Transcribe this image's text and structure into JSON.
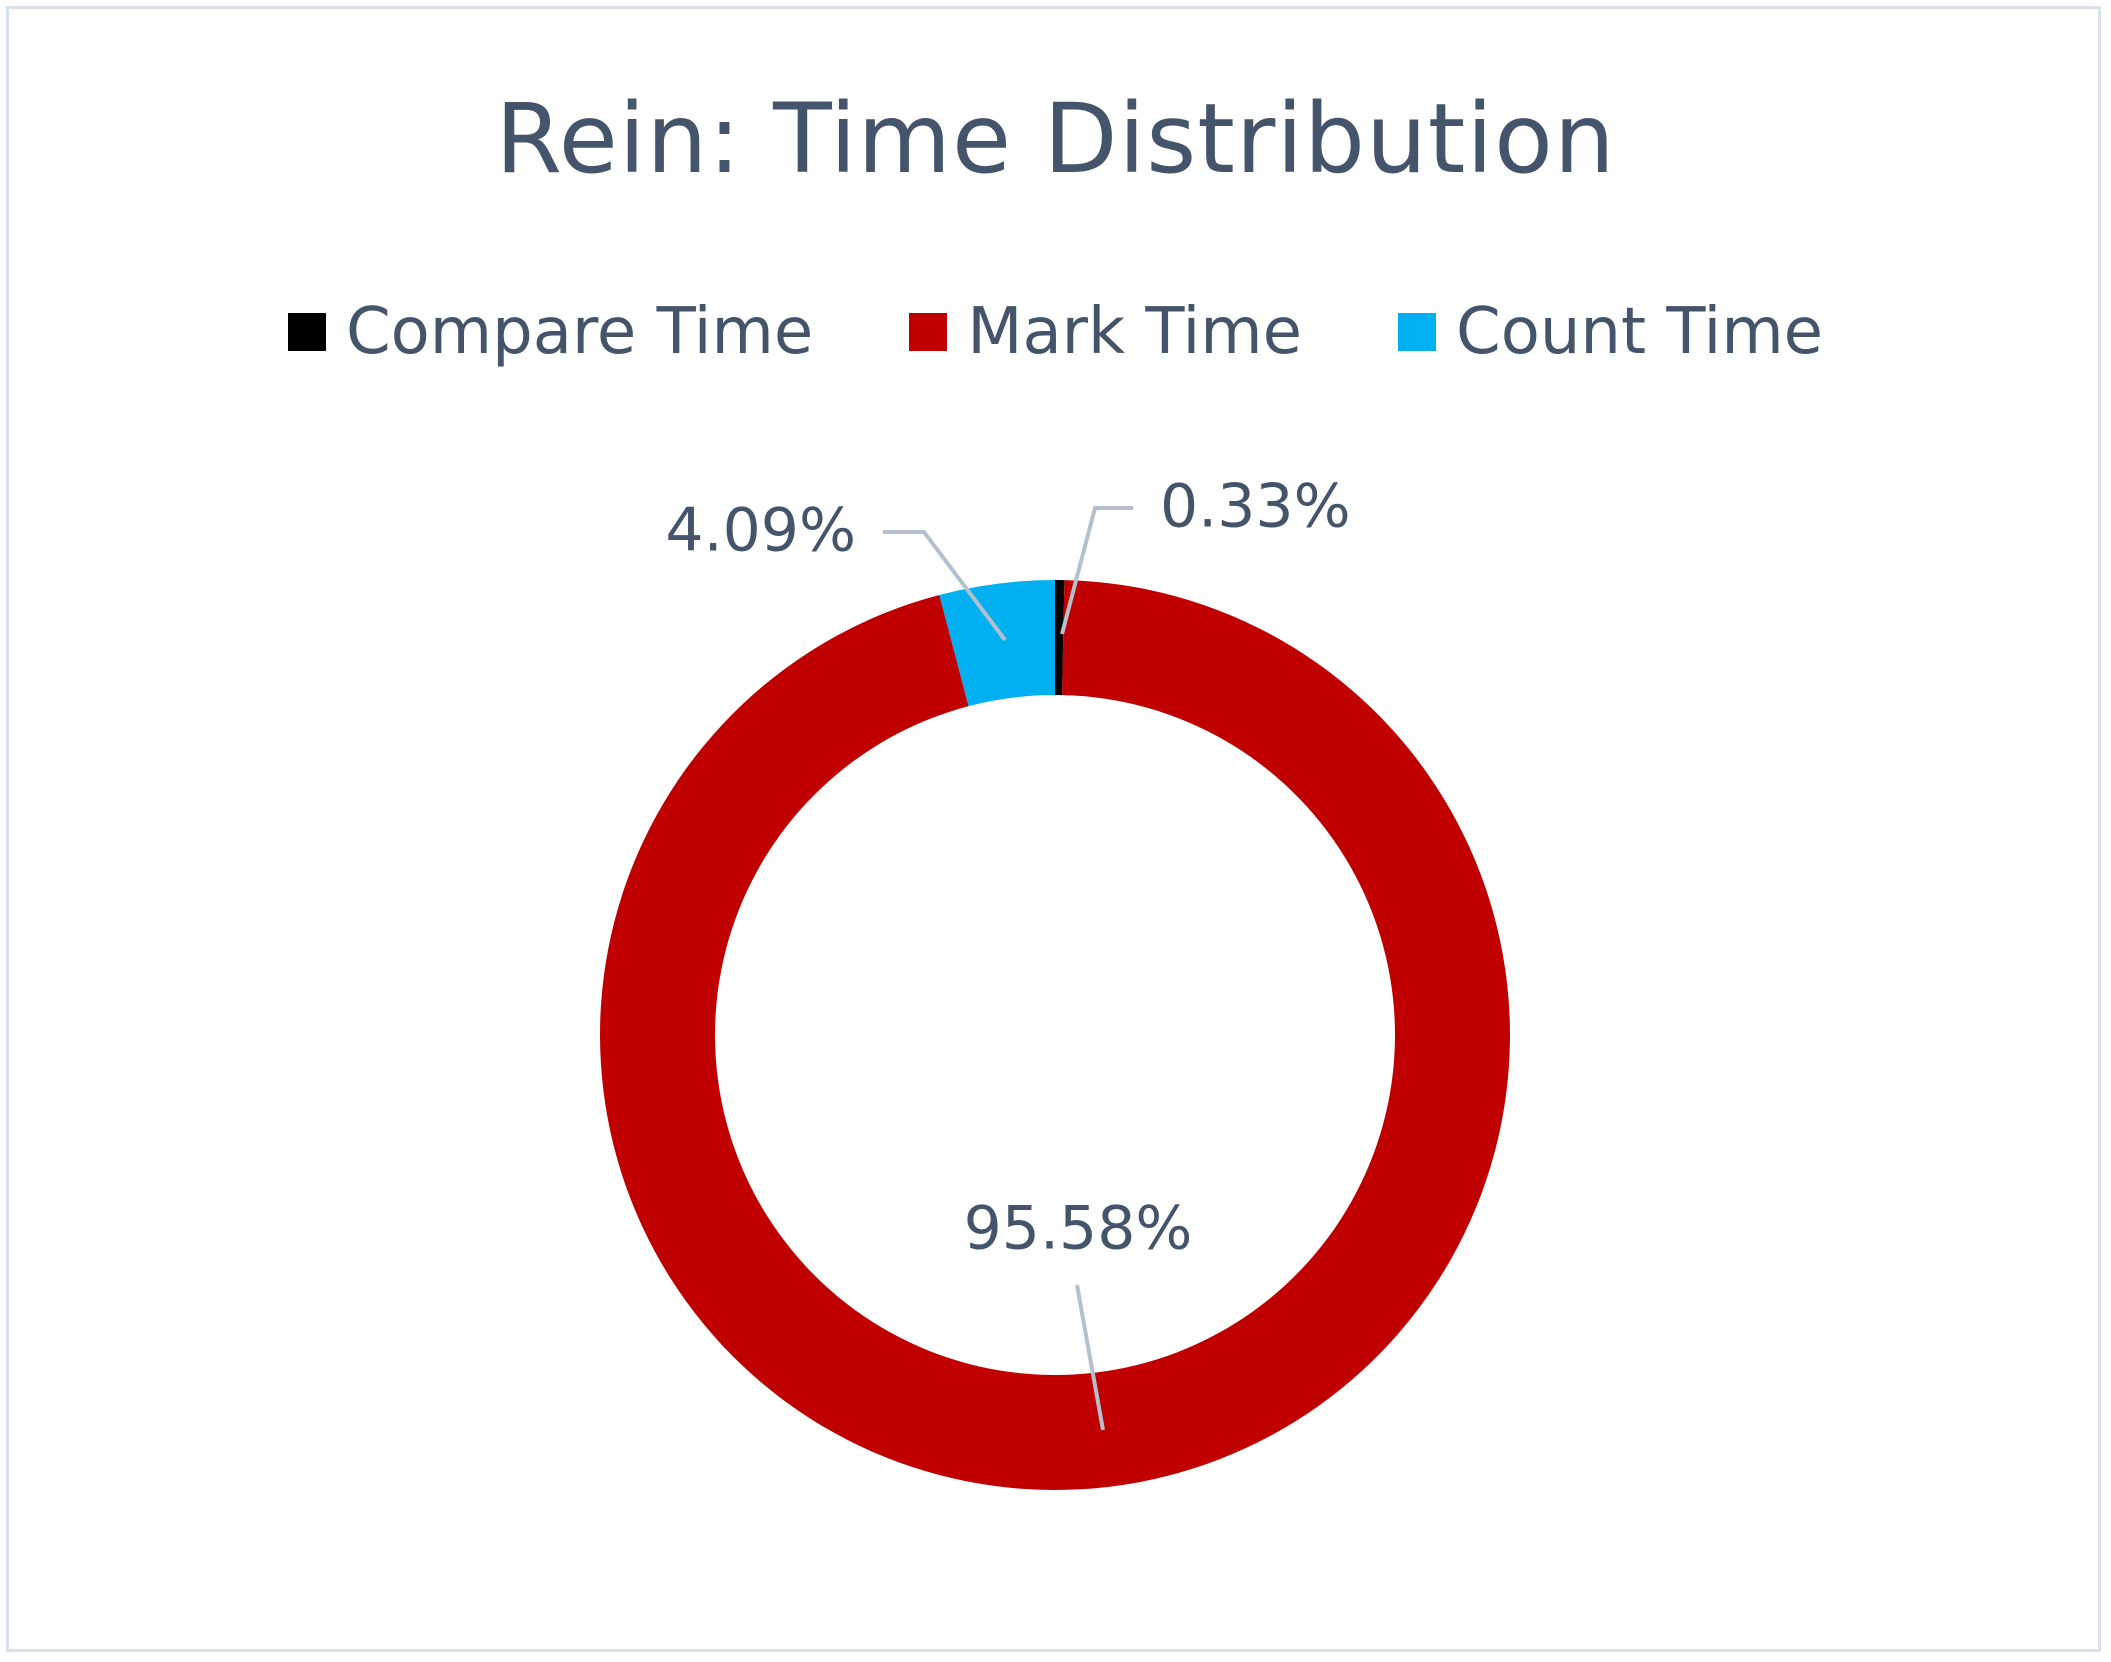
{
  "chart_data": {
    "type": "pie",
    "variant": "doughnut",
    "title": "Rein: Time Distribution",
    "legend_position": "top",
    "series": [
      {
        "name": "Compare Time",
        "value": 0.33,
        "label": "0.33%",
        "color": "#000000"
      },
      {
        "name": "Mark Time",
        "value": 95.58,
        "label": "95.58%",
        "color": "#c00000"
      },
      {
        "name": "Count Time",
        "value": 4.09,
        "label": "4.09%",
        "color": "#00b0f0"
      }
    ]
  }
}
